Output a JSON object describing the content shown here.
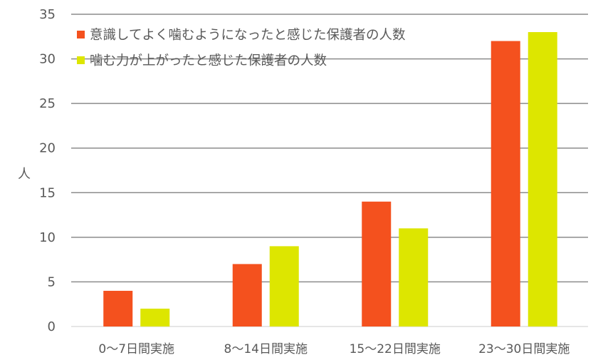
{
  "chart_data": {
    "type": "bar",
    "title": "",
    "xlabel": "",
    "ylabel": "人",
    "ylim": [
      0,
      35
    ],
    "yticks": [
      0,
      5,
      10,
      15,
      20,
      25,
      30,
      35
    ],
    "grid": true,
    "legend_position": "top-left inside plot",
    "categories": [
      "0〜7日間実施",
      "8〜14日間実施",
      "15〜22日間実施",
      "23〜30日間実施"
    ],
    "series": [
      {
        "name": "意識してよく噛むようになったと感じた保護者の人数",
        "color": "#F4511E",
        "values": [
          4,
          7,
          14,
          32
        ]
      },
      {
        "name": "噛む力が上がったと感じた保護者の人数",
        "color": "#DDE600",
        "values": [
          2,
          9,
          11,
          33
        ]
      }
    ]
  }
}
